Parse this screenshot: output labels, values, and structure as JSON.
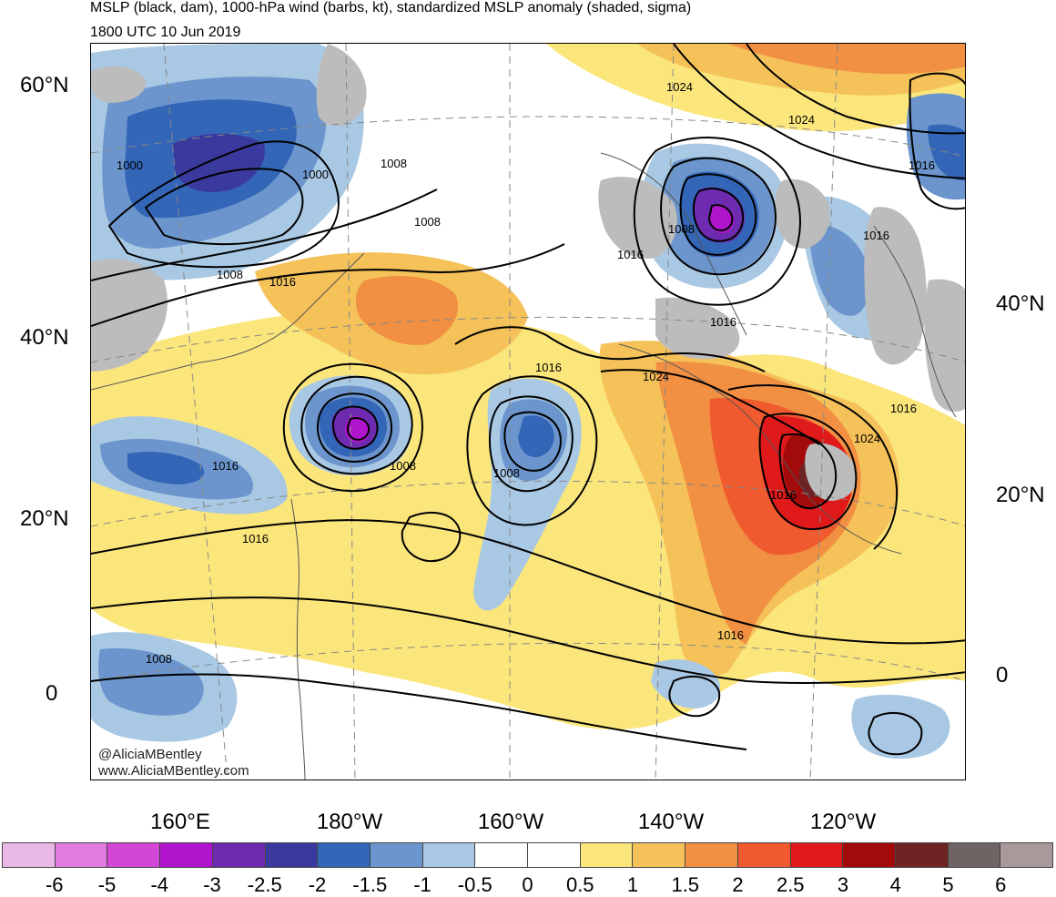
{
  "title": "MSLP (black, dam), 1000-hPa wind (barbs, kt), standardized MSLP anomaly (shaded, sigma)",
  "subtitle": "1800 UTC 10 Jun 2019",
  "lat_labels_left": [
    "60°N",
    "40°N",
    "20°N",
    "0"
  ],
  "lat_labels_right": [
    "40°N",
    "20°N",
    "0"
  ],
  "lon_labels": [
    "160°E",
    "180°W",
    "160°W",
    "140°W",
    "120°W"
  ],
  "isobar_labels": [
    "1024",
    "1024",
    "1016",
    "1000",
    "1000",
    "1008",
    "1008",
    "1016",
    "1016",
    "1016",
    "1016",
    "1016",
    "1008",
    "1008",
    "1008",
    "1008",
    "1016",
    "1024",
    "1024",
    "1016",
    "1016",
    "1016",
    "1016",
    "1008"
  ],
  "credits": {
    "handle": "@AliciaMBentley",
    "website": "www.AliciaMBentley.com"
  },
  "colorbar": {
    "labels": [
      "-6",
      "-5",
      "-4",
      "-3",
      "-2.5",
      "-2",
      "-1.5",
      "-1",
      "-0.5",
      "0",
      "0.5",
      "1",
      "1.5",
      "2",
      "2.5",
      "3",
      "4",
      "5",
      "6"
    ],
    "colors": [
      "#e9b8e6",
      "#e07ce0",
      "#d247d6",
      "#b014cc",
      "#6e2bb0",
      "#3a3a9e",
      "#3466b8",
      "#6b95cc",
      "#a9c8e3",
      "#ffffff",
      "#ffffff",
      "#fbe67c",
      "#f5c25a",
      "#f18f42",
      "#ef5a2e",
      "#e01a1a",
      "#a30b0b",
      "#6e2424",
      "#6e6464",
      "#a89a9a"
    ]
  }
}
